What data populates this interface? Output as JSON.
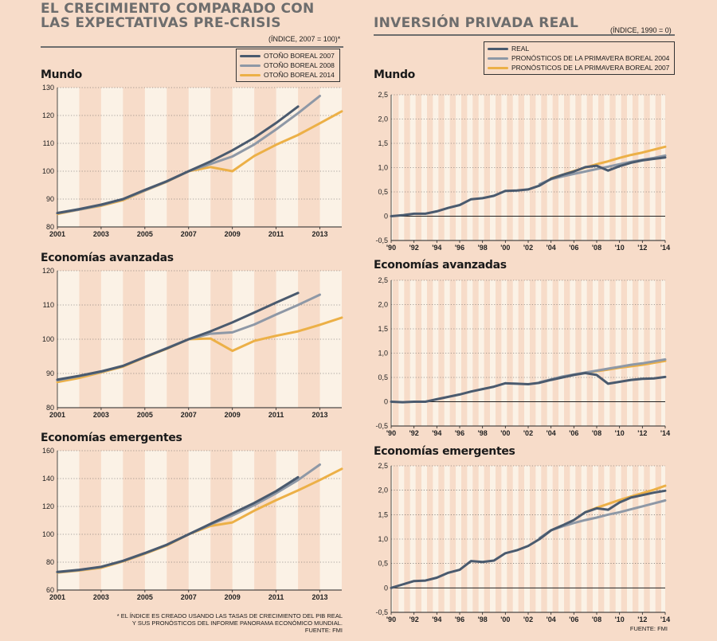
{
  "left": {
    "title_line1": "EL CRECIMIENTO COMPARADO CON",
    "title_line2": "LAS EXPECTATIVAS PRE-CRISIS",
    "subtitle": "(ÍNDICE, 2007 = 100)*",
    "legend": [
      {
        "label": "OTOÑO BOREAL 2007",
        "color": "#4a5a6e"
      },
      {
        "label": "OTOÑO BOREAL 2008",
        "color": "#8e98a6"
      },
      {
        "label": "OTOÑO BOREAL 2014",
        "color": "#ecb047"
      }
    ],
    "footnote_line1": "* EL ÍNDICE ES CREADO USANDO LAS TASAS DE CRECIMIENTO DEL PIB REAL",
    "footnote_line2": "Y SUS PRONÓSTICOS DEL INFORME PANORAMA ECONÓMICO MUNDIAL.",
    "source": "FUENTE: FMI"
  },
  "right": {
    "title": "INVERSIÓN PRIVADA REAL",
    "subtitle": "(ÍNDICE, 1990 = 0)",
    "legend": [
      {
        "label": "REAL",
        "color": "#4a5a6e"
      },
      {
        "label": "PRONÓSTICOS DE LA PRIMAVERA BOREAL 2004",
        "color": "#8e98a6"
      },
      {
        "label": "PRONÓSTICOS DE LA PRIMAVERA BOREAL 2007",
        "color": "#ecb047"
      }
    ],
    "source": "FUENTE: FMI"
  },
  "chart_data": [
    {
      "id": "l1",
      "type": "line",
      "title": "Mundo",
      "xlim": [
        2001,
        2014
      ],
      "ylim": [
        80,
        130
      ],
      "yticks": [
        80,
        90,
        100,
        110,
        120,
        130
      ],
      "xticks": [
        2001,
        2003,
        2005,
        2007,
        2009,
        2011,
        2013
      ],
      "xtick_labels": [
        "2001",
        "2003",
        "2005",
        "2007",
        "2009",
        "2011",
        "2013"
      ],
      "series": [
        {
          "name": "OTOÑO BOREAL 2014",
          "color": "#ecb047",
          "x": [
            2001,
            2002,
            2003,
            2004,
            2005,
            2006,
            2007,
            2008,
            2009,
            2010,
            2011,
            2012,
            2013,
            2014
          ],
          "y": [
            84.7,
            86.2,
            87.6,
            89.6,
            93,
            96.2,
            100,
            101.5,
            100,
            105.5,
            109.5,
            113,
            117.2,
            121.5
          ]
        },
        {
          "name": "OTOÑO BOREAL 2008",
          "color": "#8e98a6",
          "x": [
            2001,
            2002,
            2003,
            2004,
            2005,
            2006,
            2007,
            2008,
            2009,
            2010,
            2011,
            2012,
            2013
          ],
          "y": [
            84.9,
            86.2,
            87.8,
            89.9,
            93.1,
            96.3,
            100,
            102.6,
            105.3,
            109.6,
            115,
            120.8,
            127
          ]
        },
        {
          "name": "OTOÑO BOREAL 2007",
          "color": "#4a5a6e",
          "x": [
            2001,
            2002,
            2003,
            2004,
            2005,
            2006,
            2007,
            2008,
            2009,
            2010,
            2011,
            2012
          ],
          "y": [
            85,
            86.4,
            88,
            90,
            93.3,
            96.4,
            100,
            103.5,
            107.5,
            112,
            117.3,
            123.2
          ]
        }
      ]
    },
    {
      "id": "l2",
      "type": "line",
      "title": "Economías avanzadas",
      "xlim": [
        2001,
        2014
      ],
      "ylim": [
        80,
        120
      ],
      "yticks": [
        80,
        90,
        100,
        110,
        120
      ],
      "xticks": [
        2001,
        2003,
        2005,
        2007,
        2009,
        2011,
        2013
      ],
      "xtick_labels": [
        "2001",
        "2003",
        "2005",
        "2007",
        "2009",
        "2011",
        "2013"
      ],
      "series": [
        {
          "name": "OTOÑO BOREAL 2014",
          "color": "#ecb047",
          "x": [
            2001,
            2002,
            2003,
            2004,
            2005,
            2006,
            2007,
            2008,
            2009,
            2010,
            2011,
            2012,
            2013,
            2014
          ],
          "y": [
            87.5,
            88.7,
            90.3,
            92,
            94.7,
            97.2,
            100,
            100.2,
            96.6,
            99.5,
            101,
            102.3,
            104.2,
            106.3
          ]
        },
        {
          "name": "OTOÑO BOREAL 2008",
          "color": "#8e98a6",
          "x": [
            2001,
            2002,
            2003,
            2004,
            2005,
            2006,
            2007,
            2008,
            2009,
            2010,
            2011,
            2012,
            2013
          ],
          "y": [
            88,
            89.2,
            90.5,
            92.2,
            94.8,
            97.4,
            100,
            101.6,
            102,
            104.3,
            107.2,
            110,
            113
          ]
        },
        {
          "name": "OTOÑO BOREAL 2007",
          "color": "#4a5a6e",
          "x": [
            2001,
            2002,
            2003,
            2004,
            2005,
            2006,
            2007,
            2008,
            2009,
            2010,
            2011,
            2012
          ],
          "y": [
            88.2,
            89.3,
            90.6,
            92.2,
            94.8,
            97.3,
            100,
            102.3,
            104.9,
            107.8,
            110.7,
            113.5
          ]
        }
      ]
    },
    {
      "id": "l3",
      "type": "line",
      "title": "Economías emergentes",
      "xlim": [
        2001,
        2014
      ],
      "ylim": [
        60,
        160
      ],
      "yticks": [
        60,
        80,
        100,
        120,
        140,
        160
      ],
      "xticks": [
        2001,
        2003,
        2005,
        2007,
        2009,
        2011,
        2013
      ],
      "xtick_labels": [
        "2001",
        "2003",
        "2005",
        "2007",
        "2009",
        "2011",
        "2013"
      ],
      "series": [
        {
          "name": "OTOÑO BOREAL 2014",
          "color": "#ecb047",
          "x": [
            2001,
            2002,
            2003,
            2004,
            2005,
            2006,
            2007,
            2008,
            2009,
            2010,
            2011,
            2012,
            2013,
            2014
          ],
          "y": [
            72.5,
            74,
            76,
            80.5,
            86,
            92,
            100,
            106,
            108.5,
            117,
            124.5,
            131.5,
            139,
            147
          ]
        },
        {
          "name": "OTOÑO BOREAL 2008",
          "color": "#8e98a6",
          "x": [
            2001,
            2002,
            2003,
            2004,
            2005,
            2006,
            2007,
            2008,
            2009,
            2010,
            2011,
            2012,
            2013
          ],
          "y": [
            72.8,
            74.3,
            76.5,
            80.8,
            86.4,
            92.4,
            100,
            107,
            113.5,
            121,
            129.5,
            139,
            150
          ]
        },
        {
          "name": "OTOÑO BOREAL 2007",
          "color": "#4a5a6e",
          "x": [
            2001,
            2002,
            2003,
            2004,
            2005,
            2006,
            2007,
            2008,
            2009,
            2010,
            2011,
            2012
          ],
          "y": [
            73,
            74.5,
            76.7,
            81,
            86.5,
            92.5,
            100,
            107.5,
            115,
            122.5,
            131,
            141
          ]
        }
      ]
    },
    {
      "id": "r1",
      "type": "line",
      "title": "Mundo",
      "xlim": [
        1990,
        2014
      ],
      "ylim": [
        -0.5,
        2.5
      ],
      "yticks": [
        -0.5,
        0,
        0.5,
        1.0,
        1.5,
        2.0,
        2.5
      ],
      "ytick_labels": [
        "-0,5",
        "0",
        "0,5",
        "1,0",
        "1,5",
        "2,0",
        "2,5"
      ],
      "xticks": [
        1990,
        1992,
        1994,
        1996,
        1998,
        2000,
        2002,
        2004,
        2006,
        2008,
        2010,
        2012,
        2014
      ],
      "xtick_labels": [
        "'90",
        "'92",
        "'94",
        "'96",
        "'98",
        "'00",
        "'02",
        "'04",
        "'06",
        "'08",
        "'10",
        "'12",
        "'14"
      ],
      "series": [
        {
          "name": "PRONÓSTICOS DE LA PRIMAVERA BOREAL 2007",
          "color": "#ecb047",
          "x": [
            2004,
            2005,
            2006,
            2007,
            2008,
            2009,
            2010,
            2011,
            2012,
            2013,
            2014
          ],
          "y": [
            0.78,
            0.85,
            0.93,
            1.0,
            1.07,
            1.13,
            1.2,
            1.26,
            1.31,
            1.37,
            1.43
          ]
        },
        {
          "name": "PRONÓSTICOS DE LA PRIMAVERA BOREAL 2004",
          "color": "#8e98a6",
          "x": [
            2003,
            2004,
            2005,
            2006,
            2007,
            2008,
            2009,
            2010,
            2011,
            2012,
            2013,
            2014
          ],
          "y": [
            0.66,
            0.76,
            0.82,
            0.87,
            0.92,
            0.97,
            1.02,
            1.07,
            1.12,
            1.16,
            1.2,
            1.25
          ]
        },
        {
          "name": "REAL",
          "color": "#4a5a6e",
          "x": [
            1990,
            1991,
            1992,
            1993,
            1994,
            1995,
            1996,
            1997,
            1998,
            1999,
            2000,
            2001,
            2002,
            2003,
            2004,
            2005,
            2006,
            2007,
            2008,
            2009,
            2010,
            2011,
            2012,
            2013,
            2014
          ],
          "y": [
            0,
            0.02,
            0.05,
            0.05,
            0.1,
            0.17,
            0.23,
            0.35,
            0.37,
            0.42,
            0.52,
            0.53,
            0.55,
            0.63,
            0.77,
            0.85,
            0.92,
            1.01,
            1.04,
            0.94,
            1.03,
            1.1,
            1.15,
            1.18,
            1.21
          ]
        }
      ]
    },
    {
      "id": "r2",
      "type": "line",
      "title": "Economías avanzadas",
      "xlim": [
        1990,
        2014
      ],
      "ylim": [
        -0.5,
        2.5
      ],
      "yticks": [
        -0.5,
        0,
        0.5,
        1.0,
        1.5,
        2.0,
        2.5
      ],
      "ytick_labels": [
        "-0,5",
        "0",
        "0,5",
        "1,0",
        "1,5",
        "2,0",
        "2,5"
      ],
      "xticks": [
        1990,
        1992,
        1994,
        1996,
        1998,
        2000,
        2002,
        2004,
        2006,
        2008,
        2010,
        2012,
        2014
      ],
      "xtick_labels": [
        "'90",
        "'92",
        "'94",
        "'96",
        "'98",
        "'00",
        "'02",
        "'04",
        "'06",
        "'08",
        "'10",
        "'12",
        "'14"
      ],
      "series": [
        {
          "name": "PRONÓSTICOS DE LA PRIMAVERA BOREAL 2007",
          "color": "#ecb047",
          "x": [
            2007,
            2008,
            2009,
            2010,
            2011,
            2012,
            2013,
            2014
          ],
          "y": [
            0.6,
            0.63,
            0.66,
            0.7,
            0.73,
            0.76,
            0.8,
            0.84
          ]
        },
        {
          "name": "PRONÓSTICOS DE LA PRIMAVERA BOREAL 2004",
          "color": "#8e98a6",
          "x": [
            2003,
            2004,
            2005,
            2006,
            2007,
            2008,
            2009,
            2010,
            2011,
            2012,
            2013,
            2014
          ],
          "y": [
            0.4,
            0.46,
            0.52,
            0.56,
            0.6,
            0.64,
            0.68,
            0.72,
            0.76,
            0.79,
            0.83,
            0.87
          ]
        },
        {
          "name": "REAL",
          "color": "#4a5a6e",
          "x": [
            1990,
            1991,
            1992,
            1993,
            1994,
            1995,
            1996,
            1997,
            1998,
            1999,
            2000,
            2001,
            2002,
            2003,
            2004,
            2005,
            2006,
            2007,
            2008,
            2009,
            2010,
            2011,
            2012,
            2013,
            2014
          ],
          "y": [
            0,
            -0.01,
            0,
            0,
            0.05,
            0.1,
            0.15,
            0.21,
            0.26,
            0.31,
            0.38,
            0.37,
            0.36,
            0.39,
            0.45,
            0.5,
            0.55,
            0.59,
            0.55,
            0.37,
            0.41,
            0.45,
            0.47,
            0.48,
            0.51
          ]
        }
      ]
    },
    {
      "id": "r3",
      "type": "line",
      "title": "Economías emergentes",
      "xlim": [
        1990,
        2014
      ],
      "ylim": [
        -0.5,
        2.5
      ],
      "yticks": [
        -0.5,
        0,
        0.5,
        1.0,
        1.5,
        2.0,
        2.5
      ],
      "ytick_labels": [
        "-0,5",
        "0",
        "0,5",
        "1,0",
        "1,5",
        "2,0",
        "2,5"
      ],
      "xticks": [
        1990,
        1992,
        1994,
        1996,
        1998,
        2000,
        2002,
        2004,
        2006,
        2008,
        2010,
        2012,
        2014
      ],
      "xtick_labels": [
        "'90",
        "'92",
        "'94",
        "'96",
        "'98",
        "'00",
        "'02",
        "'04",
        "'06",
        "'08",
        "'10",
        "'12",
        "'14"
      ],
      "series": [
        {
          "name": "PRONÓSTICOS DE LA PRIMAVERA BOREAL 2007",
          "color": "#ecb047",
          "x": [
            2007,
            2008,
            2009,
            2010,
            2011,
            2012,
            2013,
            2014
          ],
          "y": [
            1.55,
            1.64,
            1.72,
            1.8,
            1.87,
            1.94,
            2.01,
            2.09
          ]
        },
        {
          "name": "PRONÓSTICOS DE LA PRIMAVERA BOREAL 2004",
          "color": "#8e98a6",
          "x": [
            2003,
            2004,
            2005,
            2006,
            2007,
            2008,
            2009,
            2010,
            2011,
            2012,
            2013,
            2014
          ],
          "y": [
            1.02,
            1.18,
            1.26,
            1.33,
            1.39,
            1.44,
            1.5,
            1.55,
            1.61,
            1.67,
            1.73,
            1.79
          ]
        },
        {
          "name": "REAL",
          "color": "#4a5a6e",
          "x": [
            1990,
            1991,
            1992,
            1993,
            1994,
            1995,
            1996,
            1997,
            1998,
            1999,
            2000,
            2001,
            2002,
            2003,
            2004,
            2005,
            2006,
            2007,
            2008,
            2009,
            2010,
            2011,
            2012,
            2013,
            2014
          ],
          "y": [
            0,
            0.07,
            0.14,
            0.15,
            0.21,
            0.31,
            0.37,
            0.55,
            0.53,
            0.56,
            0.71,
            0.77,
            0.86,
            1.0,
            1.18,
            1.28,
            1.39,
            1.55,
            1.63,
            1.6,
            1.75,
            1.85,
            1.9,
            1.95,
            1.99
          ]
        }
      ]
    }
  ]
}
